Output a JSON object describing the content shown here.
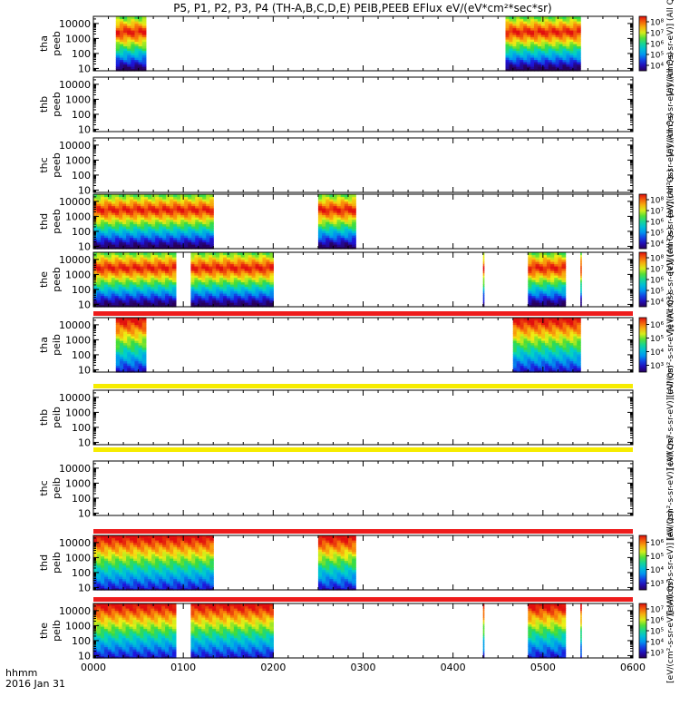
{
  "chart_data": {
    "type": "heatmap",
    "title": "P5, P1, P2, P3, P4 (TH-A,B,C,D,E) PEIB,PEEB EFlux eV/(eV*cm²*sec*sr)",
    "x_axis": {
      "label_line1": "hhmm",
      "label_line2": "2016 Jan 31",
      "range": [
        "0000",
        "0600"
      ],
      "tick_labels": [
        "0000",
        "0100",
        "0200",
        "0300",
        "0400",
        "0500",
        "0600"
      ]
    },
    "y_axis": {
      "scale": "log",
      "unit": "eV",
      "tick_labels": [
        "10",
        "100",
        "1000",
        "10000"
      ]
    },
    "colorbar_unit": "[eV/(cm²-s-sr-eV)] (All Qs)",
    "panels": [
      {
        "label_top": "tha",
        "label_bottom": "peeb",
        "colorbar_ticks": [
          "10⁴",
          "10⁵",
          "10⁶",
          "10⁷",
          "10⁸"
        ],
        "data_intervals_hhmm": [
          [
            "0015",
            "0035"
          ],
          [
            "0435",
            "0485"
          ]
        ],
        "bands": []
      },
      {
        "label_top": "thb",
        "label_bottom": "peeb",
        "colorbar_ticks": [],
        "data_intervals_hhmm": [],
        "bands": []
      },
      {
        "label_top": "thc",
        "label_bottom": "peeb",
        "colorbar_ticks": [],
        "data_intervals_hhmm": [],
        "bands": []
      },
      {
        "label_top": "thd",
        "label_bottom": "peeb",
        "colorbar_ticks": [
          "10⁴",
          "10⁵",
          "10⁶",
          "10⁷",
          "10⁸"
        ],
        "data_intervals_hhmm": [
          [
            "0000",
            "0080"
          ],
          [
            "0230",
            "0255"
          ]
        ],
        "bands": []
      },
      {
        "label_top": "the",
        "label_bottom": "peeb",
        "colorbar_ticks": [
          "10⁴",
          "10⁵",
          "10⁶",
          "10⁷",
          "10⁸"
        ],
        "data_intervals_hhmm": [
          [
            "0000",
            "0055"
          ],
          [
            "0105",
            "0160"
          ],
          [
            "0380",
            "0420"
          ],
          [
            "0450",
            "0475"
          ],
          [
            "0485",
            "0510"
          ]
        ],
        "bands": []
      },
      {
        "label_top": "tha",
        "label_bottom": "peib",
        "colorbar_ticks": [
          "10³",
          "10⁴",
          "10⁵",
          "10⁶"
        ],
        "data_intervals_hhmm": [
          [
            "0015",
            "0035"
          ],
          [
            "0440",
            "0485"
          ]
        ],
        "bands": [
          {
            "position": "above",
            "color": "#ee1c1c"
          }
        ]
      },
      {
        "label_top": "thb",
        "label_bottom": "peib",
        "colorbar_ticks": [],
        "data_intervals_hhmm": [],
        "bands": [
          {
            "position": "above",
            "color": "#f6ec00"
          },
          {
            "position": "below",
            "color": "#f6ec00"
          }
        ]
      },
      {
        "label_top": "thc",
        "label_bottom": "peib",
        "colorbar_ticks": [],
        "data_intervals_hhmm": [],
        "bands": []
      },
      {
        "label_top": "thd",
        "label_bottom": "peib",
        "colorbar_ticks": [
          "10³",
          "10⁴",
          "10⁵",
          "10⁶"
        ],
        "data_intervals_hhmm": [
          [
            "0000",
            "0080"
          ],
          [
            "0230",
            "0255"
          ]
        ],
        "bands": [
          {
            "position": "above",
            "color": "#ee1c1c"
          }
        ]
      },
      {
        "label_top": "the",
        "label_bottom": "peib",
        "colorbar_ticks": [
          "10³",
          "10⁴",
          "10⁵",
          "10⁶",
          "10⁷"
        ],
        "data_intervals_hhmm": [
          [
            "0000",
            "0055"
          ],
          [
            "0105",
            "0160"
          ],
          [
            "0380",
            "0420"
          ],
          [
            "0450",
            "0475"
          ],
          [
            "0485",
            "0510"
          ]
        ],
        "bands": [
          {
            "position": "above",
            "color": "#ee1c1c"
          }
        ]
      }
    ]
  }
}
